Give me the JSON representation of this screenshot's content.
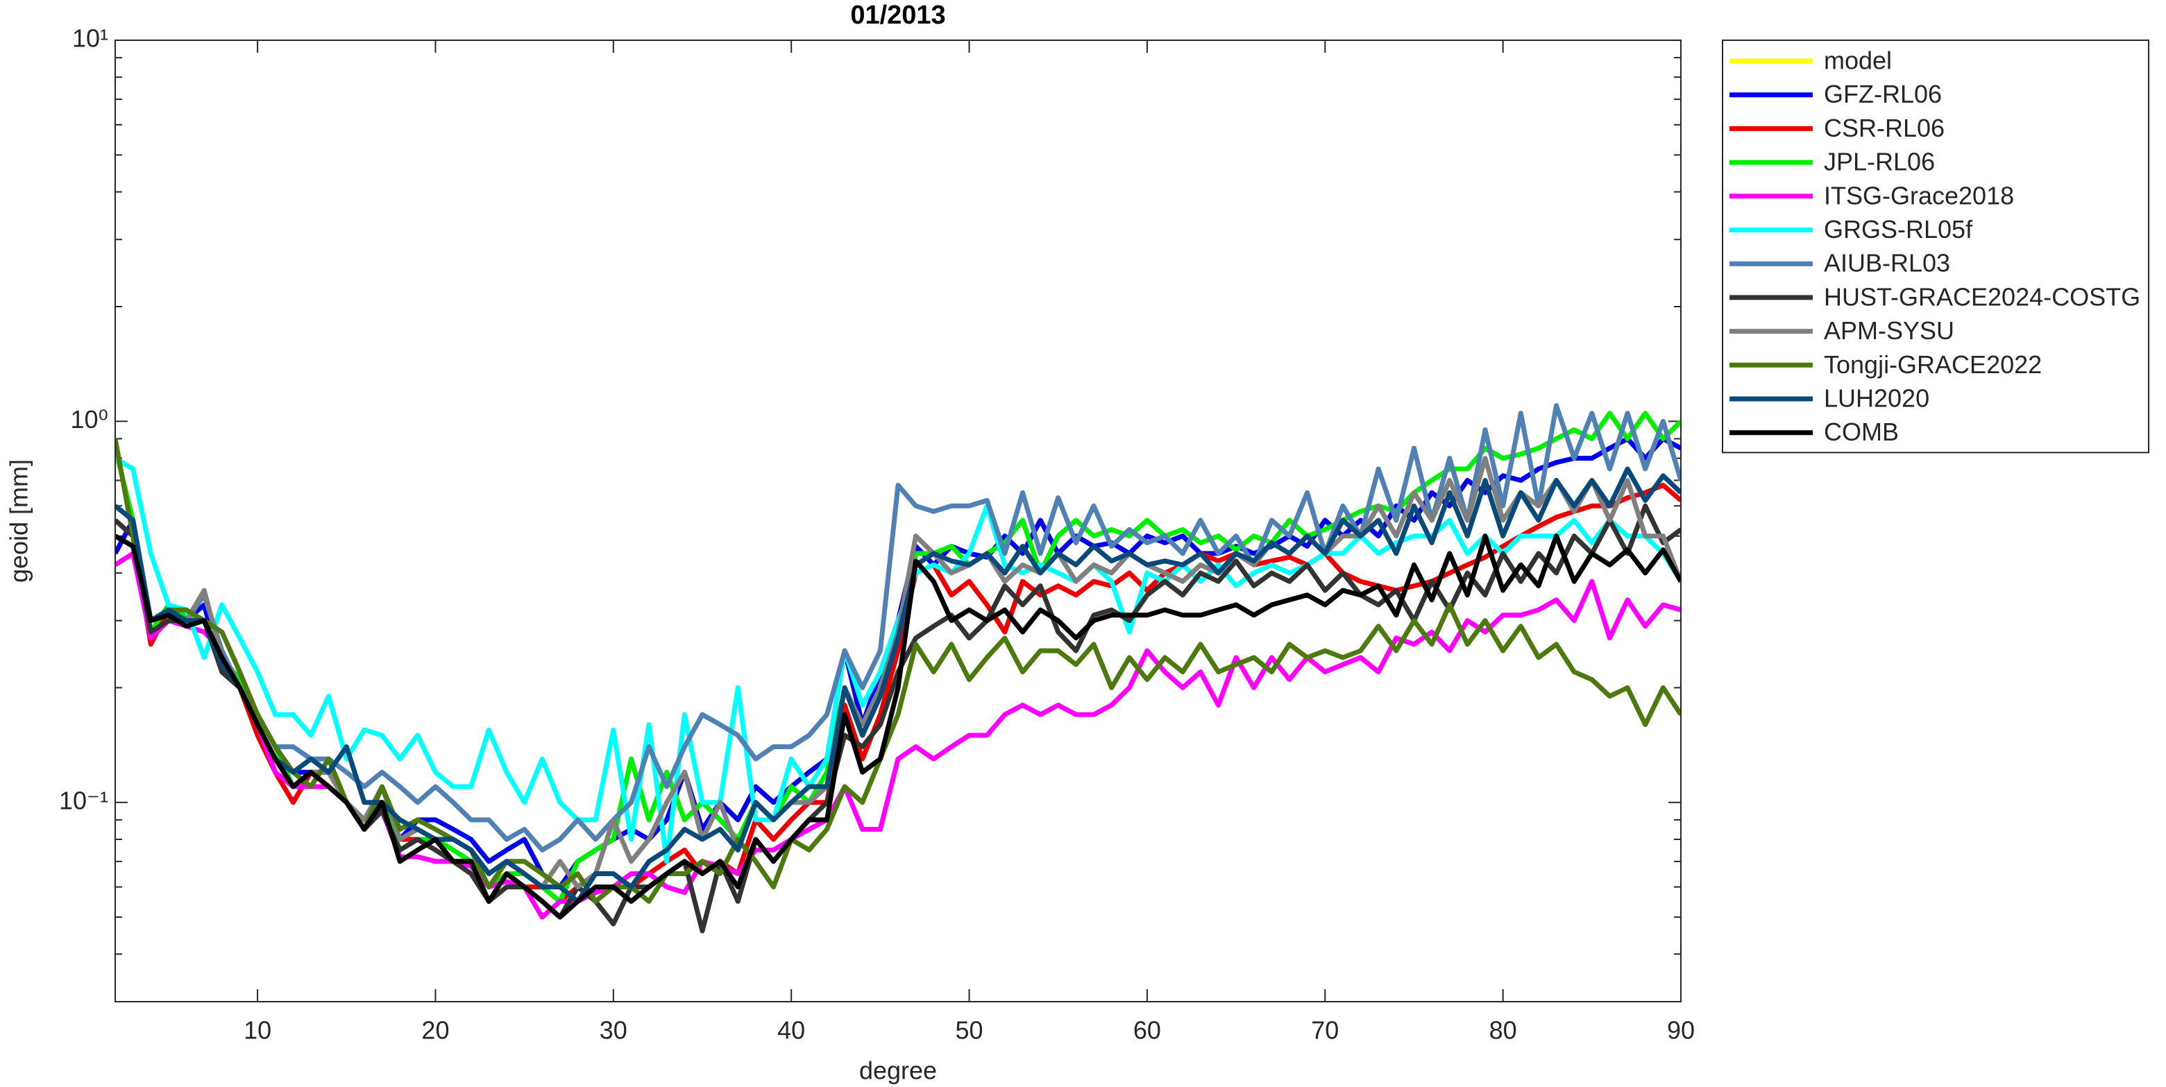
{
  "chart_data": {
    "type": "line",
    "title": "01/2013",
    "xlabel": "degree",
    "ylabel": "geoid [mm]",
    "log_y": true,
    "legend": "outside upper right",
    "xlim": [
      2,
      90
    ],
    "xticks": [
      10,
      20,
      30,
      40,
      50,
      60,
      70,
      80,
      90
    ],
    "ylim": [
      0.03,
      10
    ],
    "yticks": [
      {
        "value": 0.1,
        "label": "10⁻¹"
      },
      {
        "value": 1,
        "label": "10⁰"
      },
      {
        "value": 10,
        "label": "10¹"
      }
    ],
    "x": [
      2,
      3,
      4,
      5,
      6,
      7,
      8,
      9,
      10,
      11,
      12,
      13,
      14,
      15,
      16,
      17,
      18,
      19,
      20,
      21,
      22,
      23,
      24,
      25,
      26,
      27,
      28,
      29,
      30,
      31,
      32,
      33,
      34,
      35,
      36,
      37,
      38,
      39,
      40,
      41,
      42,
      43,
      44,
      45,
      46,
      47,
      48,
      49,
      50,
      51,
      52,
      53,
      54,
      55,
      56,
      57,
      58,
      59,
      60,
      61,
      62,
      63,
      64,
      65,
      66,
      67,
      68,
      69,
      70,
      71,
      72,
      73,
      74,
      75,
      76,
      77,
      78,
      79,
      80,
      81,
      82,
      83,
      84,
      85,
      86,
      87,
      88,
      89,
      90
    ],
    "series": [
      {
        "name": "model",
        "color": "#ffff00",
        "values": [
          null,
          null,
          null,
          null,
          null,
          null,
          null,
          null,
          null,
          null,
          null,
          null,
          null,
          null,
          null,
          null,
          null,
          null,
          null,
          null,
          null,
          null,
          null,
          null,
          null,
          null,
          null,
          null,
          null,
          null,
          null,
          null,
          null,
          null,
          null,
          null,
          null,
          null,
          null,
          null,
          null,
          null,
          null,
          null,
          null,
          null,
          null,
          null,
          null,
          null,
          null,
          null,
          null,
          null,
          null,
          null,
          null,
          null,
          null,
          null,
          null,
          null,
          null,
          null,
          null,
          null,
          null,
          null,
          null,
          null,
          null,
          null,
          null,
          null,
          null,
          null,
          null,
          null,
          null,
          null,
          null,
          null,
          null,
          null,
          null,
          null,
          null,
          null,
          null
        ]
      },
      {
        "name": "GFZ-RL06",
        "color": "#0000ee",
        "values": [
          0.45,
          0.55,
          0.3,
          0.32,
          0.3,
          0.33,
          0.22,
          0.2,
          0.17,
          0.14,
          0.12,
          0.12,
          0.12,
          0.1,
          0.09,
          0.1,
          0.08,
          0.09,
          0.09,
          0.085,
          0.08,
          0.07,
          0.075,
          0.08,
          0.065,
          0.06,
          0.07,
          0.075,
          0.08,
          0.085,
          0.08,
          0.09,
          0.12,
          0.085,
          0.1,
          0.09,
          0.11,
          0.1,
          0.11,
          0.12,
          0.13,
          0.25,
          0.16,
          0.22,
          0.3,
          0.47,
          0.42,
          0.47,
          0.45,
          0.44,
          0.5,
          0.45,
          0.55,
          0.45,
          0.5,
          0.47,
          0.48,
          0.45,
          0.5,
          0.48,
          0.5,
          0.45,
          0.45,
          0.47,
          0.45,
          0.47,
          0.5,
          0.47,
          0.55,
          0.5,
          0.55,
          0.5,
          0.6,
          0.55,
          0.65,
          0.6,
          0.7,
          0.65,
          0.72,
          0.7,
          0.75,
          0.78,
          0.8,
          0.8,
          0.85,
          0.9,
          0.8,
          0.9,
          0.85
        ]
      },
      {
        "name": "CSR-RL06",
        "color": "#ee0000",
        "values": [
          0.55,
          0.5,
          0.26,
          0.32,
          0.3,
          0.3,
          0.23,
          0.2,
          0.15,
          0.12,
          0.1,
          0.12,
          0.12,
          0.1,
          0.09,
          0.1,
          0.08,
          0.08,
          0.075,
          0.07,
          0.07,
          0.06,
          0.065,
          0.06,
          0.06,
          0.055,
          0.06,
          0.065,
          0.065,
          0.06,
          0.065,
          0.07,
          0.075,
          0.065,
          0.07,
          0.065,
          0.09,
          0.08,
          0.09,
          0.1,
          0.1,
          0.18,
          0.13,
          0.17,
          0.25,
          0.4,
          0.42,
          0.35,
          0.38,
          0.33,
          0.28,
          0.38,
          0.35,
          0.37,
          0.35,
          0.38,
          0.37,
          0.4,
          0.36,
          0.4,
          0.42,
          0.45,
          0.43,
          0.45,
          0.42,
          0.43,
          0.44,
          0.42,
          0.45,
          0.4,
          0.38,
          0.37,
          0.36,
          0.37,
          0.38,
          0.4,
          0.42,
          0.44,
          0.47,
          0.5,
          0.53,
          0.56,
          0.58,
          0.6,
          0.6,
          0.63,
          0.65,
          0.68,
          0.62
        ]
      },
      {
        "name": "JPL-RL06",
        "color": "#00ee00",
        "values": [
          0.85,
          0.55,
          0.28,
          0.33,
          0.31,
          0.3,
          0.24,
          0.21,
          0.17,
          0.14,
          0.11,
          0.11,
          0.11,
          0.1,
          0.09,
          0.1,
          0.075,
          0.08,
          0.08,
          0.075,
          0.07,
          0.06,
          0.065,
          0.065,
          0.06,
          0.055,
          0.07,
          0.075,
          0.08,
          0.13,
          0.09,
          0.12,
          0.09,
          0.1,
          0.09,
          0.08,
          0.1,
          0.09,
          0.11,
          0.1,
          0.12,
          0.2,
          0.15,
          0.2,
          0.28,
          0.45,
          0.45,
          0.47,
          0.42,
          0.45,
          0.48,
          0.55,
          0.4,
          0.5,
          0.55,
          0.5,
          0.52,
          0.5,
          0.55,
          0.5,
          0.52,
          0.48,
          0.5,
          0.46,
          0.5,
          0.48,
          0.55,
          0.5,
          0.52,
          0.55,
          0.58,
          0.6,
          0.58,
          0.65,
          0.7,
          0.75,
          0.75,
          0.85,
          0.8,
          0.82,
          0.85,
          0.9,
          0.95,
          0.9,
          1.05,
          0.9,
          1.05,
          0.9,
          1.0
        ]
      },
      {
        "name": "ITSG-Grace2018",
        "color": "#ff00ff",
        "values": [
          0.42,
          0.45,
          0.27,
          0.3,
          0.29,
          0.28,
          0.25,
          0.2,
          0.16,
          0.12,
          0.11,
          0.11,
          0.11,
          0.1,
          0.085,
          0.095,
          0.072,
          0.072,
          0.07,
          0.07,
          0.068,
          0.06,
          0.062,
          0.06,
          0.05,
          0.055,
          0.055,
          0.058,
          0.06,
          0.065,
          0.065,
          0.06,
          0.058,
          0.07,
          0.068,
          0.065,
          0.075,
          0.075,
          0.08,
          0.085,
          0.09,
          0.11,
          0.085,
          0.085,
          0.13,
          0.14,
          0.13,
          0.14,
          0.15,
          0.15,
          0.17,
          0.18,
          0.17,
          0.18,
          0.17,
          0.17,
          0.18,
          0.2,
          0.25,
          0.22,
          0.2,
          0.22,
          0.18,
          0.24,
          0.2,
          0.24,
          0.21,
          0.24,
          0.22,
          0.23,
          0.24,
          0.22,
          0.27,
          0.26,
          0.28,
          0.25,
          0.3,
          0.28,
          0.31,
          0.31,
          0.32,
          0.34,
          0.3,
          0.38,
          0.27,
          0.34,
          0.29,
          0.33,
          0.32
        ]
      },
      {
        "name": "GRGS-RL05f",
        "color": "#00ffff",
        "values": [
          0.8,
          0.75,
          0.45,
          0.33,
          0.32,
          0.24,
          0.33,
          0.27,
          0.22,
          0.17,
          0.17,
          0.15,
          0.19,
          0.13,
          0.155,
          0.15,
          0.13,
          0.15,
          0.12,
          0.11,
          0.11,
          0.155,
          0.12,
          0.1,
          0.13,
          0.1,
          0.09,
          0.09,
          0.155,
          0.08,
          0.16,
          0.07,
          0.17,
          0.1,
          0.1,
          0.2,
          0.09,
          0.09,
          0.13,
          0.11,
          0.13,
          0.25,
          0.18,
          0.22,
          0.3,
          0.4,
          0.42,
          0.4,
          0.45,
          0.6,
          0.42,
          0.4,
          0.42,
          0.4,
          0.38,
          0.42,
          0.38,
          0.28,
          0.4,
          0.38,
          0.42,
          0.38,
          0.42,
          0.37,
          0.4,
          0.42,
          0.4,
          0.42,
          0.45,
          0.45,
          0.5,
          0.45,
          0.48,
          0.5,
          0.5,
          0.55,
          0.45,
          0.5,
          0.45,
          0.5,
          0.5,
          0.5,
          0.55,
          0.48,
          0.55,
          0.5,
          0.5,
          0.45,
          0.38
        ]
      },
      {
        "name": "AIUB-RL03",
        "color": "#4f81b5",
        "values": [
          0.6,
          0.55,
          0.3,
          0.32,
          0.3,
          0.35,
          0.25,
          0.2,
          0.17,
          0.14,
          0.14,
          0.13,
          0.13,
          0.12,
          0.11,
          0.12,
          0.11,
          0.1,
          0.11,
          0.1,
          0.09,
          0.09,
          0.08,
          0.085,
          0.075,
          0.08,
          0.09,
          0.08,
          0.09,
          0.1,
          0.14,
          0.11,
          0.14,
          0.17,
          0.16,
          0.15,
          0.13,
          0.14,
          0.14,
          0.15,
          0.17,
          0.25,
          0.2,
          0.25,
          0.68,
          0.6,
          0.58,
          0.6,
          0.6,
          0.62,
          0.45,
          0.65,
          0.45,
          0.63,
          0.48,
          0.6,
          0.47,
          0.52,
          0.48,
          0.5,
          0.45,
          0.55,
          0.45,
          0.5,
          0.42,
          0.55,
          0.5,
          0.65,
          0.45,
          0.6,
          0.5,
          0.75,
          0.55,
          0.85,
          0.55,
          0.8,
          0.55,
          0.95,
          0.6,
          1.05,
          0.6,
          1.1,
          0.8,
          1.05,
          0.75,
          1.05,
          0.75,
          1.0,
          0.7
        ]
      },
      {
        "name": "HUST-GRACE2024-COSTG",
        "color": "#333333",
        "values": [
          0.55,
          0.5,
          0.28,
          0.3,
          0.3,
          0.3,
          0.22,
          0.2,
          0.16,
          0.13,
          0.11,
          0.12,
          0.11,
          0.1,
          0.085,
          0.095,
          0.075,
          0.08,
          0.075,
          0.07,
          0.065,
          0.055,
          0.06,
          0.06,
          0.055,
          0.05,
          0.06,
          0.055,
          0.048,
          0.06,
          0.06,
          0.065,
          0.07,
          0.046,
          0.07,
          0.055,
          0.08,
          0.07,
          0.08,
          0.09,
          0.1,
          0.15,
          0.14,
          0.16,
          0.22,
          0.27,
          0.29,
          0.31,
          0.27,
          0.3,
          0.37,
          0.33,
          0.37,
          0.28,
          0.25,
          0.31,
          0.32,
          0.3,
          0.35,
          0.38,
          0.35,
          0.4,
          0.38,
          0.43,
          0.37,
          0.4,
          0.38,
          0.42,
          0.36,
          0.4,
          0.35,
          0.33,
          0.36,
          0.3,
          0.38,
          0.32,
          0.4,
          0.35,
          0.45,
          0.38,
          0.45,
          0.4,
          0.5,
          0.45,
          0.55,
          0.45,
          0.6,
          0.48,
          0.52
        ]
      },
      {
        "name": "APM-SYSU",
        "color": "#808080",
        "values": [
          0.6,
          0.55,
          0.3,
          0.32,
          0.3,
          0.36,
          0.24,
          0.2,
          0.16,
          0.13,
          0.11,
          0.12,
          0.12,
          0.1,
          0.09,
          0.11,
          0.08,
          0.085,
          0.08,
          0.08,
          0.075,
          0.065,
          0.07,
          0.065,
          0.06,
          0.07,
          0.06,
          0.065,
          0.09,
          0.07,
          0.08,
          0.1,
          0.12,
          0.08,
          0.1,
          0.075,
          0.1,
          0.09,
          0.1,
          0.1,
          0.11,
          0.2,
          0.16,
          0.2,
          0.28,
          0.5,
          0.45,
          0.4,
          0.42,
          0.45,
          0.38,
          0.42,
          0.4,
          0.45,
          0.38,
          0.42,
          0.4,
          0.45,
          0.42,
          0.4,
          0.38,
          0.42,
          0.4,
          0.45,
          0.42,
          0.48,
          0.45,
          0.5,
          0.45,
          0.5,
          0.5,
          0.6,
          0.5,
          0.65,
          0.55,
          0.7,
          0.55,
          0.8,
          0.55,
          0.65,
          0.6,
          0.7,
          0.58,
          0.7,
          0.55,
          0.7,
          0.5,
          0.5,
          0.38
        ]
      },
      {
        "name": "Tongji-GRACE2022",
        "color": "#4d7a0f",
        "values": [
          0.9,
          0.5,
          0.3,
          0.32,
          0.32,
          0.3,
          0.28,
          0.22,
          0.17,
          0.14,
          0.12,
          0.11,
          0.13,
          0.1,
          0.085,
          0.11,
          0.085,
          0.09,
          0.085,
          0.08,
          0.075,
          0.06,
          0.07,
          0.07,
          0.065,
          0.06,
          0.065,
          0.055,
          0.06,
          0.06,
          0.055,
          0.065,
          0.065,
          0.07,
          0.065,
          0.08,
          0.07,
          0.06,
          0.08,
          0.075,
          0.085,
          0.11,
          0.1,
          0.13,
          0.17,
          0.26,
          0.22,
          0.26,
          0.21,
          0.24,
          0.27,
          0.22,
          0.25,
          0.25,
          0.23,
          0.26,
          0.2,
          0.24,
          0.21,
          0.24,
          0.22,
          0.26,
          0.22,
          0.23,
          0.24,
          0.22,
          0.26,
          0.24,
          0.25,
          0.24,
          0.25,
          0.29,
          0.25,
          0.3,
          0.26,
          0.33,
          0.26,
          0.3,
          0.25,
          0.29,
          0.24,
          0.26,
          0.22,
          0.21,
          0.19,
          0.2,
          0.16,
          0.2,
          0.17
        ]
      },
      {
        "name": "LUH2020",
        "color": "#0a4a7a",
        "values": [
          0.6,
          0.55,
          0.3,
          0.32,
          0.3,
          0.3,
          0.23,
          0.2,
          0.16,
          0.13,
          0.12,
          0.13,
          0.12,
          0.14,
          0.1,
          0.1,
          0.09,
          0.085,
          0.08,
          0.08,
          0.075,
          0.065,
          0.07,
          0.065,
          0.06,
          0.06,
          0.055,
          0.065,
          0.065,
          0.06,
          0.07,
          0.075,
          0.085,
          0.08,
          0.085,
          0.075,
          0.1,
          0.09,
          0.1,
          0.11,
          0.11,
          0.2,
          0.15,
          0.19,
          0.27,
          0.42,
          0.45,
          0.43,
          0.42,
          0.45,
          0.4,
          0.47,
          0.4,
          0.45,
          0.42,
          0.47,
          0.43,
          0.45,
          0.42,
          0.43,
          0.42,
          0.45,
          0.4,
          0.45,
          0.43,
          0.48,
          0.45,
          0.5,
          0.45,
          0.55,
          0.5,
          0.55,
          0.45,
          0.6,
          0.48,
          0.65,
          0.5,
          0.7,
          0.5,
          0.65,
          0.55,
          0.7,
          0.6,
          0.7,
          0.6,
          0.75,
          0.62,
          0.72,
          0.65
        ]
      },
      {
        "name": "COMB",
        "color": "#000000",
        "values": [
          0.5,
          0.47,
          0.3,
          0.31,
          0.29,
          0.3,
          0.24,
          0.2,
          0.16,
          0.13,
          0.11,
          0.12,
          0.11,
          0.1,
          0.085,
          0.1,
          0.07,
          0.075,
          0.08,
          0.07,
          0.07,
          0.055,
          0.065,
          0.06,
          0.055,
          0.05,
          0.055,
          0.06,
          0.06,
          0.055,
          0.06,
          0.065,
          0.07,
          0.065,
          0.07,
          0.06,
          0.08,
          0.07,
          0.08,
          0.09,
          0.09,
          0.17,
          0.12,
          0.13,
          0.2,
          0.43,
          0.38,
          0.3,
          0.32,
          0.3,
          0.32,
          0.28,
          0.32,
          0.3,
          0.27,
          0.3,
          0.31,
          0.31,
          0.31,
          0.32,
          0.31,
          0.31,
          0.32,
          0.33,
          0.31,
          0.33,
          0.34,
          0.35,
          0.33,
          0.36,
          0.35,
          0.37,
          0.31,
          0.42,
          0.34,
          0.45,
          0.35,
          0.5,
          0.36,
          0.42,
          0.37,
          0.5,
          0.38,
          0.45,
          0.42,
          0.46,
          0.4,
          0.46,
          0.38
        ]
      }
    ]
  }
}
